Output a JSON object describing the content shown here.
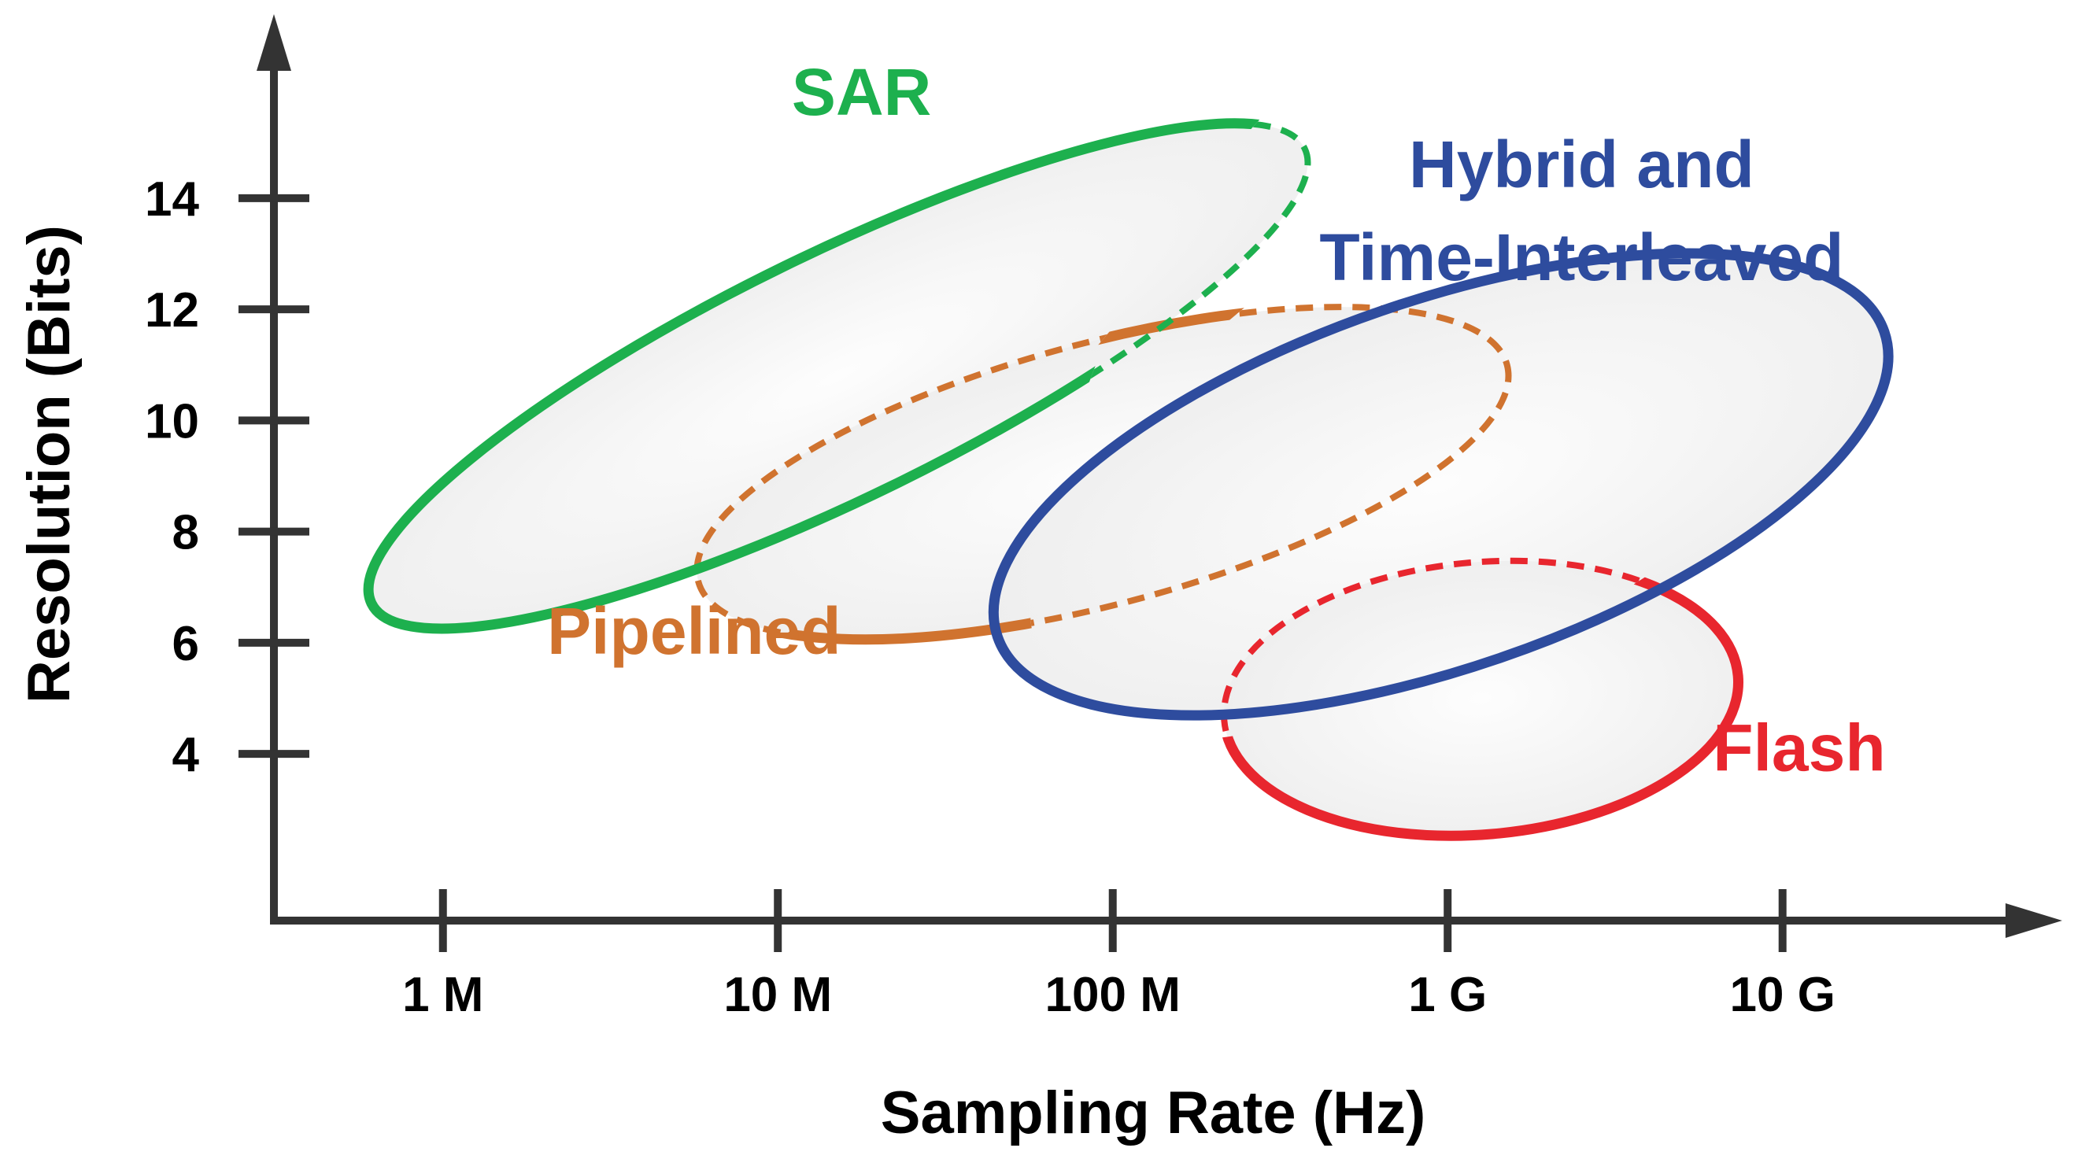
{
  "chart_data": {
    "type": "region",
    "title": "",
    "xlabel": "Sampling Rate (Hz)",
    "ylabel": "Resolution (Bits)",
    "x_scale": "log10",
    "x_ticks": [
      {
        "value": 1000000.0,
        "label": "1 M"
      },
      {
        "value": 10000000.0,
        "label": "10 M"
      },
      {
        "value": 100000000.0,
        "label": "100 M"
      },
      {
        "value": 1000000000.0,
        "label": "1 G"
      },
      {
        "value": 10000000000.0,
        "label": "10 G"
      }
    ],
    "y_ticks": [
      {
        "value": 4,
        "label": "4"
      },
      {
        "value": 6,
        "label": "6"
      },
      {
        "value": 8,
        "label": "8"
      },
      {
        "value": 10,
        "label": "10"
      },
      {
        "value": 12,
        "label": "12"
      },
      {
        "value": 14,
        "label": "14"
      }
    ],
    "xlim_log10": [
      5.5,
      10.6
    ],
    "ylim": [
      1.0,
      17.0
    ],
    "regions": [
      {
        "name": "SAR",
        "label": "SAR",
        "color": "#1DB04E",
        "center_log10_hz": 7.18,
        "center_bits": 10.8,
        "semi_major_log_decades": 1.55,
        "semi_minor_bits": 2.2,
        "tilt_deg": -26,
        "label_log10_hz": 7.25,
        "label_bits": 15.5
      },
      {
        "name": "Pipelined",
        "label": "Pipelined",
        "color": "#D0732F",
        "center_log10_hz": 7.97,
        "center_bits": 9.05,
        "semi_major_log_decades": 1.25,
        "semi_minor_bits": 2.35,
        "tilt_deg": -15,
        "label_log10_hz": 6.75,
        "label_bits": 5.8
      },
      {
        "name": "Hybrid and Time-Interleaved",
        "label_lines": [
          "Hybrid and",
          "Time-Interleaved"
        ],
        "color": "#2E4C9E",
        "center_log10_hz": 8.98,
        "center_bits": 8.85,
        "semi_major_log_decades": 1.4,
        "semi_minor_bits": 3.3,
        "tilt_deg": -19,
        "label_log10_hz": 9.4,
        "label_bits": 14.2
      },
      {
        "name": "Flash",
        "label": "Flash",
        "color": "#E8262E",
        "center_log10_hz": 9.1,
        "center_bits": 5.0,
        "semi_major_log_decades": 0.77,
        "semi_minor_bits": 2.45,
        "tilt_deg": -5,
        "label_log10_hz": 10.05,
        "label_bits": 3.7
      }
    ]
  }
}
